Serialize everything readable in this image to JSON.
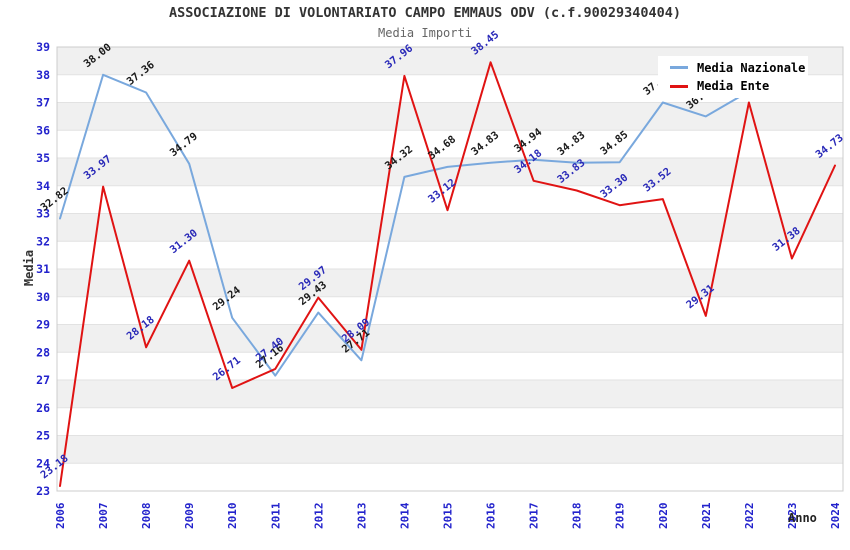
{
  "title": "ASSOCIAZIONE DI VOLONTARIATO CAMPO EMMAUS ODV (c.f.90029340404)",
  "subtitle": "Media Importi",
  "legend": {
    "items": [
      {
        "label": "Media Nazionale",
        "color": "#79a8dd"
      },
      {
        "label": "Media Ente",
        "color": "#e01313"
      }
    ]
  },
  "colors": {
    "axis_tick": "#2222cc",
    "band": "#f0f0f0",
    "grid": "#e2e2e2",
    "plot_border": "#cccccc"
  },
  "chart_data": {
    "type": "line",
    "title": "ASSOCIAZIONE DI VOLONTARIATO CAMPO EMMAUS ODV (c.f.90029340404)",
    "subtitle": "Media Importi",
    "xlabel": "Anno",
    "ylabel": "Media",
    "ylim": [
      23,
      39
    ],
    "grid": "horizontal-bands-alternating",
    "legend_position": "top-right-inside",
    "x": [
      "2006",
      "2007",
      "2008",
      "2009",
      "2010",
      "2011",
      "2012",
      "2013",
      "2014",
      "2015",
      "2016",
      "2017",
      "2018",
      "2019",
      "2020",
      "2021",
      "2022",
      "2023",
      "2024"
    ],
    "series": [
      {
        "name": "Media Nazionale",
        "color": "#79a8dd",
        "label_color": "#1a1a1a",
        "values": [
          32.82,
          38.0,
          37.36,
          34.79,
          29.24,
          27.16,
          29.43,
          27.71,
          34.32,
          34.68,
          34.83,
          34.94,
          34.83,
          34.85,
          37.0,
          36.5,
          37.4,
          null,
          null
        ],
        "labels": [
          "32.82",
          "38.00",
          "37.36",
          "34.79",
          "29.24",
          "27.16",
          "29.43",
          "27.71",
          "34.32",
          "34.68",
          "34.83",
          "34.94",
          "34.83",
          "34.85",
          "37.0",
          "36.5",
          "",
          "",
          ""
        ]
      },
      {
        "name": "Media Ente",
        "color": "#e01313",
        "label_color": "#2929b8",
        "values": [
          23.18,
          33.97,
          28.18,
          31.3,
          26.71,
          27.4,
          29.97,
          28.09,
          37.96,
          33.12,
          38.45,
          34.18,
          33.83,
          33.3,
          33.52,
          29.31,
          37.0,
          31.38,
          34.73
        ],
        "labels": [
          "23.18",
          "33.97",
          "28.18",
          "31.30",
          "26.71",
          "27.40",
          "29.97",
          "28.09",
          "37.96",
          "33.12",
          "38.45",
          "34.18",
          "33.83",
          "33.30",
          "33.52",
          "29.31",
          "",
          "31.38",
          "34.73"
        ]
      }
    ]
  }
}
